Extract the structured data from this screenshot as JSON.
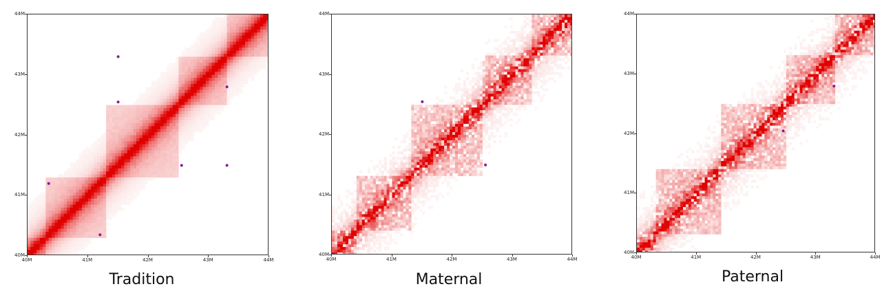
{
  "chart_data": [
    {
      "type": "heatmap",
      "title": "Tradition",
      "region_start_mb": 40,
      "region_end_mb": 44,
      "x_ticks": [
        "40M",
        "41M",
        "42M",
        "43M",
        "44M"
      ],
      "y_ticks": [
        "40M",
        "41M",
        "42M",
        "43M",
        "44M"
      ],
      "colormap": [
        "#ffffff",
        "#e00000"
      ],
      "noise": "low",
      "domains_mb": [
        [
          40.0,
          40.3
        ],
        [
          40.3,
          41.3
        ],
        [
          41.3,
          42.5
        ],
        [
          42.5,
          43.3
        ],
        [
          43.3,
          44.0
        ]
      ],
      "dots_mb": [
        [
          41.5,
          43.3
        ],
        [
          41.5,
          42.55
        ],
        [
          42.55,
          41.5
        ],
        [
          43.3,
          41.5
        ],
        [
          43.3,
          42.8
        ],
        [
          41.2,
          40.35
        ],
        [
          40.35,
          41.2
        ]
      ]
    },
    {
      "type": "heatmap",
      "title": "Maternal",
      "region_start_mb": 40,
      "region_end_mb": 44,
      "x_ticks": [
        "40M",
        "41M",
        "42M",
        "43M",
        "44M"
      ],
      "y_ticks": [
        "40M",
        "41M",
        "42M",
        "43M",
        "44M"
      ],
      "colormap": [
        "#ffffff",
        "#e00000"
      ],
      "noise": "high",
      "domains_mb": [
        [
          40.0,
          40.4
        ],
        [
          40.4,
          41.3
        ],
        [
          41.3,
          42.5
        ],
        [
          42.5,
          43.3
        ],
        [
          43.3,
          44.0
        ]
      ],
      "dots_mb": [
        [
          42.55,
          41.5
        ],
        [
          41.5,
          42.55
        ]
      ]
    },
    {
      "type": "heatmap",
      "title": "Paternal",
      "region_start_mb": 40,
      "region_end_mb": 44,
      "x_ticks": [
        "40M",
        "41M",
        "42M",
        "43M",
        "44M"
      ],
      "y_ticks": [
        "40M",
        "41M",
        "42M",
        "43M",
        "44M"
      ],
      "colormap": [
        "#ffffff",
        "#e00000"
      ],
      "noise": "high",
      "domains_mb": [
        [
          40.0,
          40.3
        ],
        [
          40.3,
          41.4
        ],
        [
          41.4,
          42.5
        ],
        [
          42.5,
          43.3
        ],
        [
          43.3,
          44.0
        ]
      ],
      "dots_mb": [
        [
          43.3,
          42.8
        ],
        [
          42.45,
          42.05
        ]
      ]
    }
  ]
}
